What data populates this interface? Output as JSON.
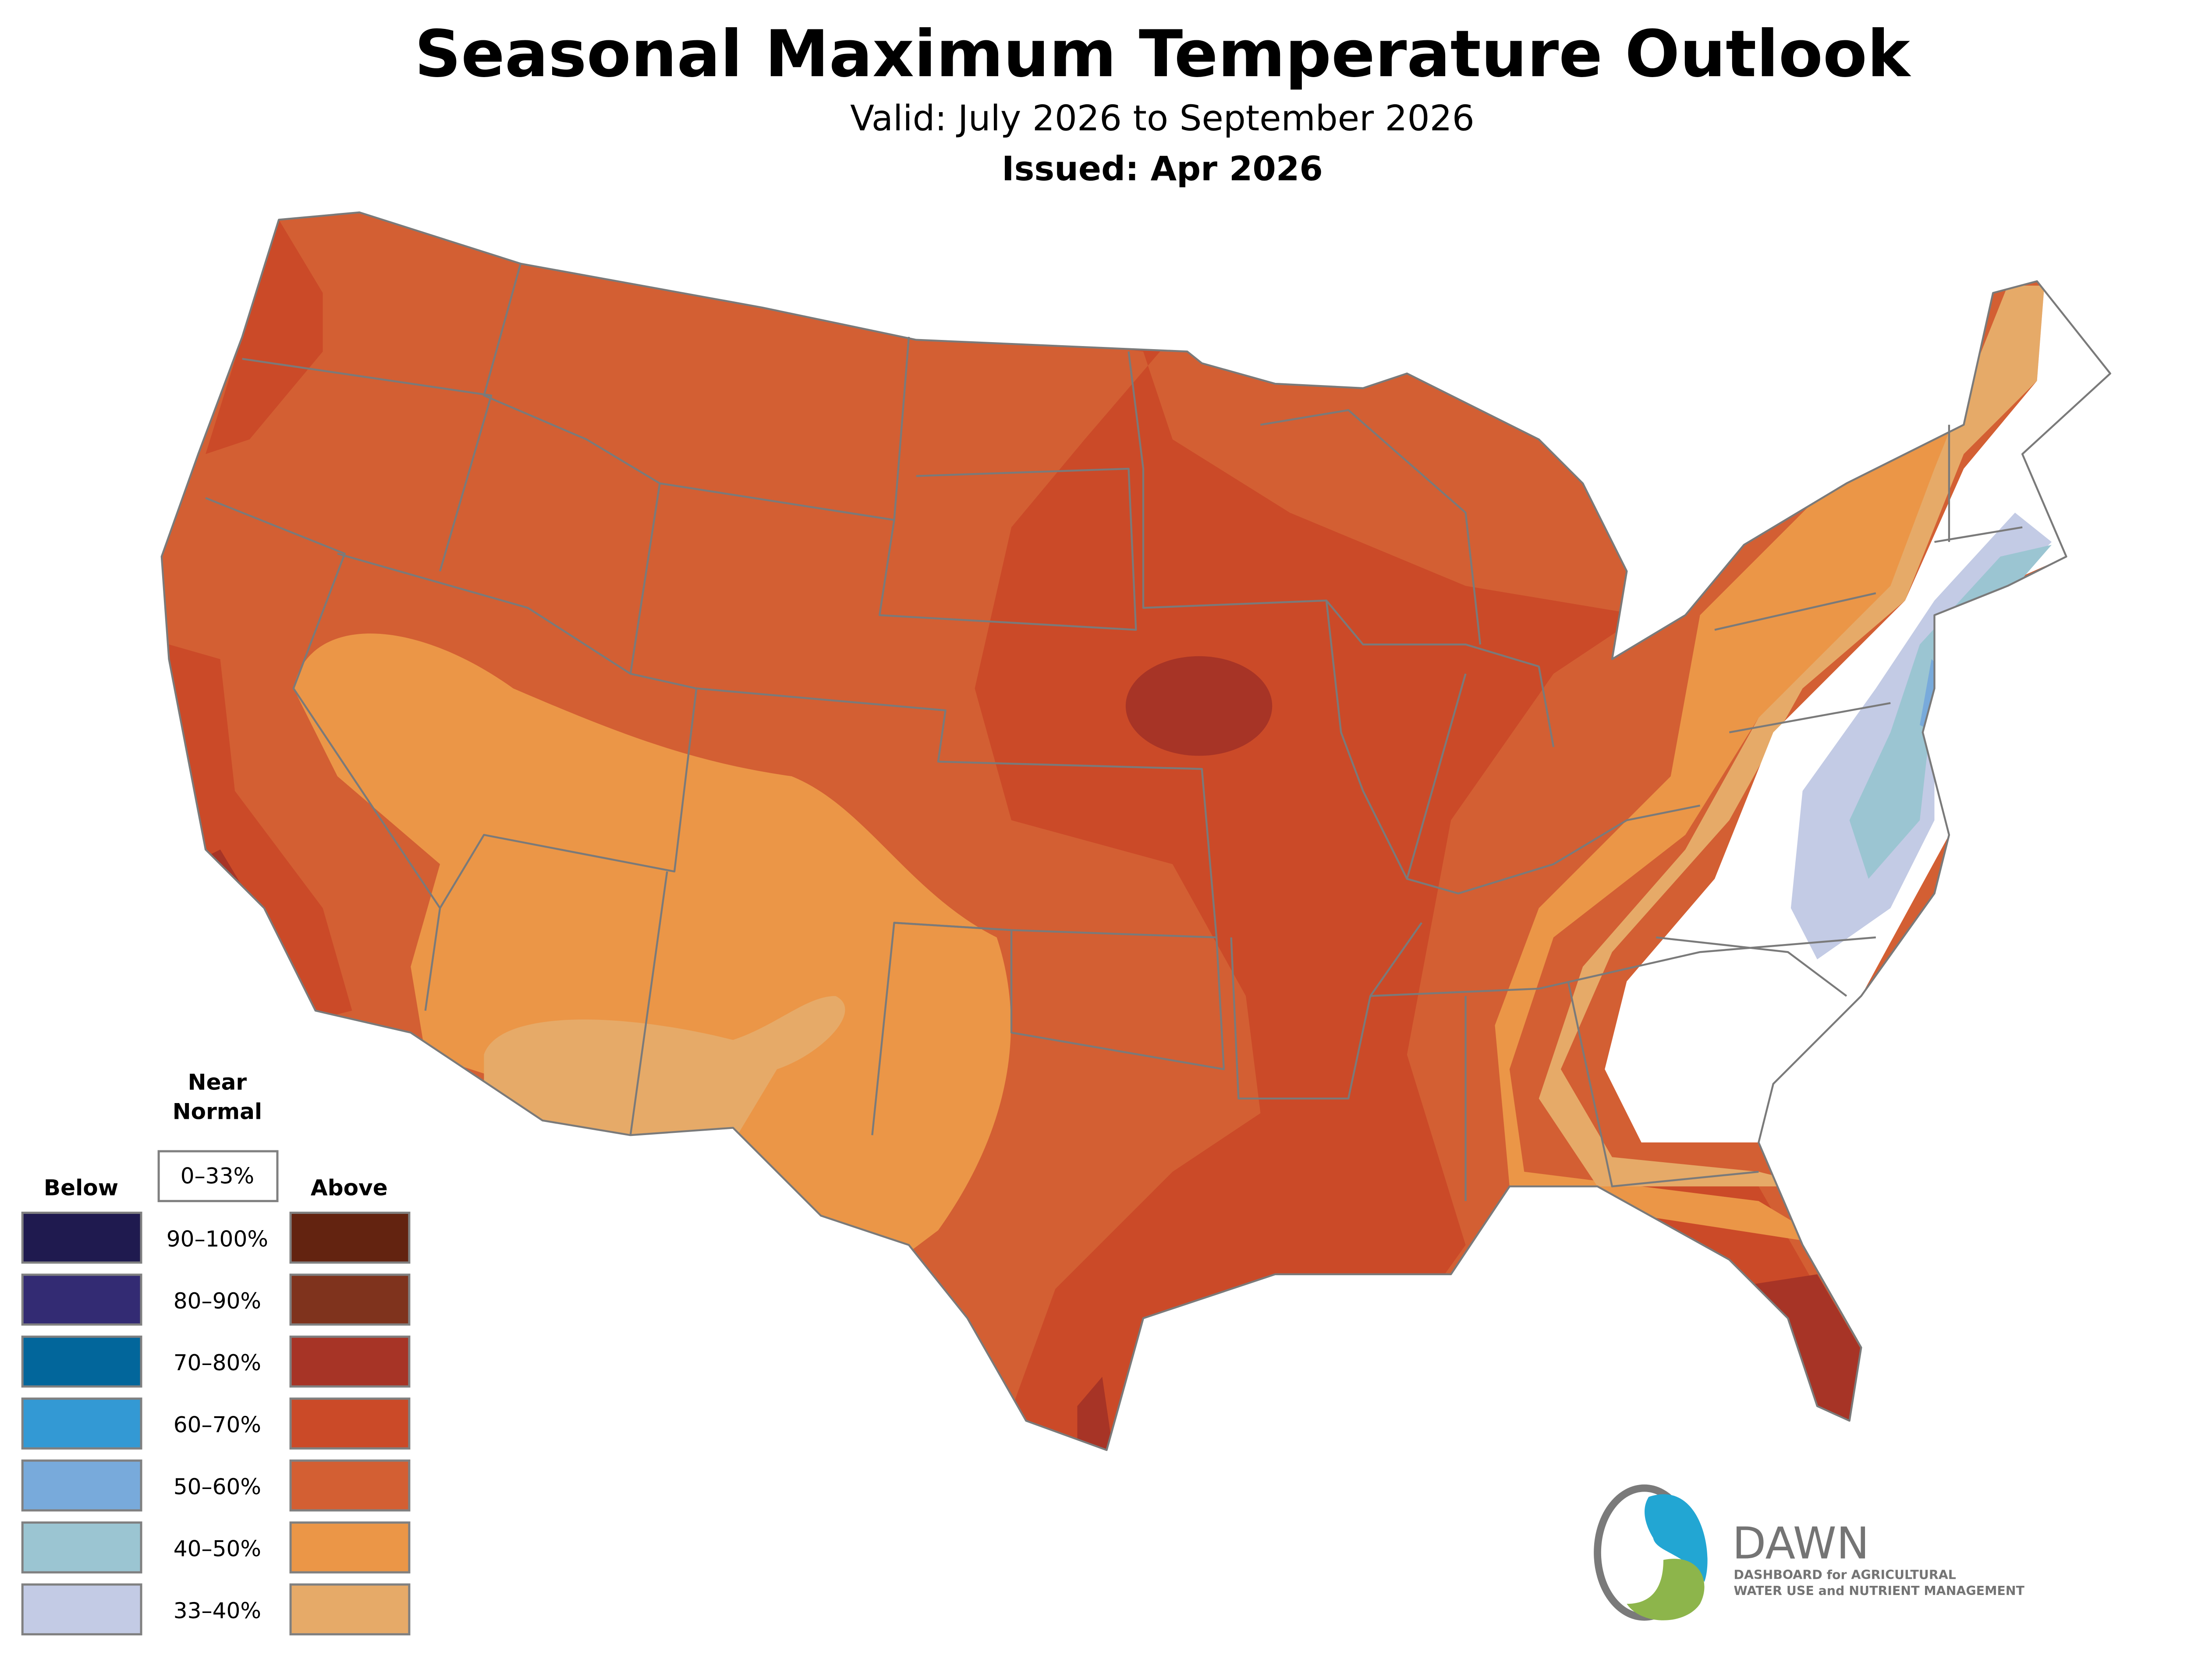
{
  "header": {
    "title": "Seasonal Maximum Temperature Outlook",
    "valid": "Valid: July 2026 to September 2026",
    "issued": "Issued: Apr 2026"
  },
  "legend": {
    "near_normal_line1": "Near",
    "near_normal_line2": "Normal",
    "near_normal_range": "0–33%",
    "below_label": "Below",
    "above_label": "Above",
    "ranges": [
      "90–100%",
      "80–90%",
      "70–80%",
      "60–70%",
      "50–60%",
      "40–50%",
      "33–40%"
    ],
    "below_colors": [
      "#1f1a4f",
      "#332b73",
      "#02669b",
      "#3399d4",
      "#78aadb",
      "#9bc5d2",
      "#c3cbe5"
    ],
    "above_colors": [
      "#632310",
      "#7f331d",
      "#a73426",
      "#cb4a28",
      "#d35f33",
      "#eb9647",
      "#e6aa68"
    ]
  },
  "logo": {
    "name": "DAWN",
    "tagline1": "DASHBOARD for AGRICULTURAL",
    "tagline2": "WATER USE and NUTRIENT MANAGEMENT"
  }
}
